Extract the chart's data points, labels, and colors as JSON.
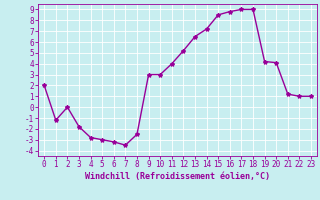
{
  "x": [
    0,
    1,
    2,
    3,
    4,
    5,
    6,
    7,
    8,
    9,
    10,
    11,
    12,
    13,
    14,
    15,
    16,
    17,
    18,
    19,
    20,
    21,
    22,
    23
  ],
  "y": [
    2.0,
    -1.2,
    0.0,
    -1.8,
    -2.8,
    -3.0,
    -3.2,
    -3.5,
    -2.5,
    3.0,
    3.0,
    4.0,
    5.2,
    6.5,
    7.2,
    8.5,
    8.8,
    9.0,
    9.0,
    4.2,
    4.1,
    1.2,
    1.0,
    1.0
  ],
  "line_color": "#990099",
  "marker": "*",
  "bg_color": "#c8eef0",
  "grid_color": "#ffffff",
  "xlabel": "Windchill (Refroidissement éolien,°C)",
  "ylabel": "",
  "xlim": [
    -0.5,
    23.5
  ],
  "ylim": [
    -4.5,
    9.5
  ],
  "xticks": [
    0,
    1,
    2,
    3,
    4,
    5,
    6,
    7,
    8,
    9,
    10,
    11,
    12,
    13,
    14,
    15,
    16,
    17,
    18,
    19,
    20,
    21,
    22,
    23
  ],
  "yticks": [
    -4,
    -3,
    -2,
    -1,
    0,
    1,
    2,
    3,
    4,
    5,
    6,
    7,
    8,
    9
  ],
  "tick_color": "#990099",
  "label_color": "#990099",
  "font_size": 5.5,
  "xlabel_fontsize": 6.0,
  "linewidth": 1.0,
  "markersize": 3.0
}
